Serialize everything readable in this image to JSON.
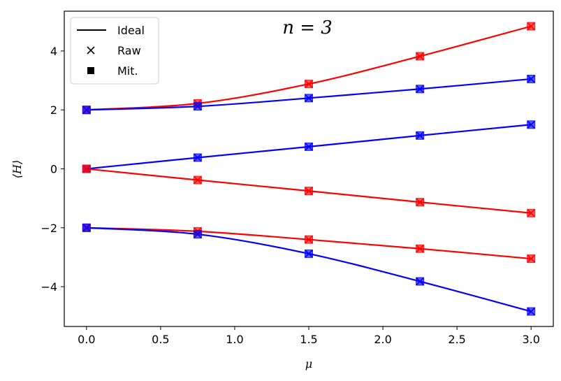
{
  "chart_data": {
    "type": "line",
    "title": "n = 3",
    "xlabel": "μ",
    "ylabel": "⟨H⟩",
    "xlim": [
      -0.15,
      3.15
    ],
    "ylim": [
      -5.35,
      5.35
    ],
    "x_ticks": [
      0.0,
      0.5,
      1.0,
      1.5,
      2.0,
      2.5,
      3.0
    ],
    "x_tick_labels": [
      "0.0",
      "0.5",
      "1.0",
      "1.5",
      "2.0",
      "2.5",
      "3.0"
    ],
    "y_ticks": [
      -4,
      -2,
      0,
      2,
      4
    ],
    "y_tick_labels": [
      "−4",
      "−2",
      "0",
      "2",
      "4"
    ],
    "grid": false,
    "legend": {
      "placement": "top-left",
      "entries": [
        {
          "label": "Ideal",
          "marker": "line"
        },
        {
          "label": "Raw",
          "marker": "x"
        },
        {
          "label": "Mit.",
          "marker": "square"
        }
      ]
    },
    "x_points": [
      0.0,
      0.75,
      1.5,
      2.25,
      3.0
    ],
    "series": [
      {
        "color": "#ff0000",
        "values": [
          2.0,
          2.22,
          2.88,
          3.82,
          4.84
        ]
      },
      {
        "color": "#0000ff",
        "values": [
          2.0,
          2.12,
          2.4,
          2.71,
          3.05
        ]
      },
      {
        "color": "#0000ff",
        "values": [
          0.0,
          0.38,
          0.75,
          1.13,
          1.5
        ]
      },
      {
        "color": "#ff0000",
        "values": [
          0.0,
          -0.38,
          -0.75,
          -1.13,
          -1.5
        ]
      },
      {
        "color": "#ff0000",
        "values": [
          -2.0,
          -2.12,
          -2.4,
          -2.71,
          -3.05
        ]
      },
      {
        "color": "#0000ff",
        "values": [
          -2.0,
          -2.22,
          -2.88,
          -3.82,
          -4.84
        ]
      }
    ]
  }
}
